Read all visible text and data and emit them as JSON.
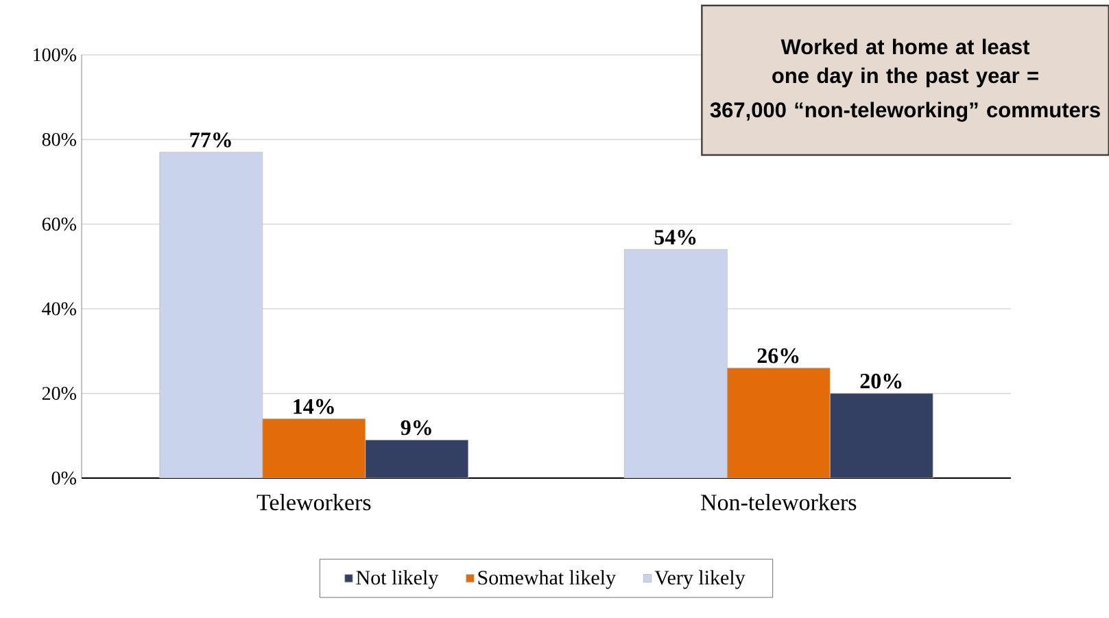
{
  "chart_data": {
    "type": "bar",
    "categories": [
      "Teleworkers",
      "Non-teleworkers"
    ],
    "series": [
      {
        "name": "Very likely",
        "color": "#c9d3ec",
        "values": [
          77,
          54
        ],
        "value_labels": [
          "77%",
          "54%"
        ]
      },
      {
        "name": "Somewhat likely",
        "color": "#e36c0a",
        "values": [
          14,
          26
        ],
        "value_labels": [
          "14%",
          "26%"
        ]
      },
      {
        "name": "Not likely",
        "color": "#333f63",
        "values": [
          9,
          20
        ],
        "value_labels": [
          "9%",
          "20%"
        ]
      }
    ],
    "ylim": [
      0,
      100
    ],
    "yticks": [
      {
        "value": 0,
        "label": "0%"
      },
      {
        "value": 20,
        "label": "20%"
      },
      {
        "value": 40,
        "label": "40%"
      },
      {
        "value": 60,
        "label": "60%"
      },
      {
        "value": 80,
        "label": "80%"
      },
      {
        "value": 100,
        "label": "100%"
      }
    ],
    "grid": "y",
    "legend": "bottom",
    "annotations": [
      "Worked at home at least one day in the past year =",
      "367,000 “non-teleworking” commuters"
    ]
  }
}
